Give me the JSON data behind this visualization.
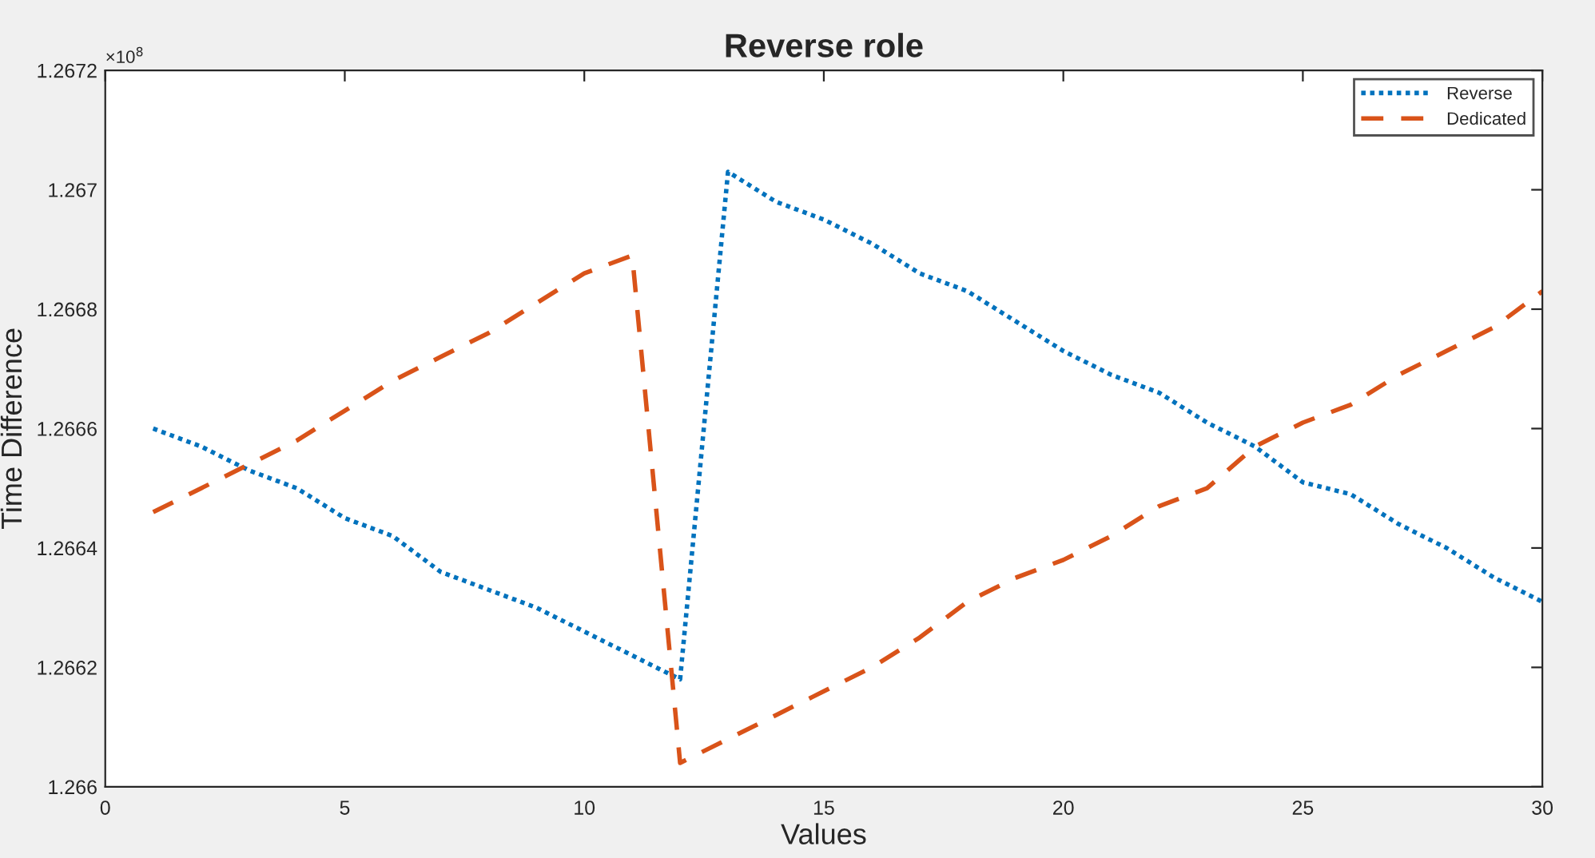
{
  "chart_data": {
    "type": "line",
    "title": "Reverse role",
    "xlabel": "Values",
    "ylabel": "Time Difference",
    "annotations": [
      "×10$^{8}$"
    ],
    "x": [
      1,
      2,
      3,
      4,
      5,
      6,
      7,
      8,
      9,
      10,
      11,
      12,
      13,
      14,
      15,
      16,
      17,
      18,
      19,
      20,
      21,
      22,
      23,
      24,
      25,
      26,
      27,
      28,
      29,
      30
    ],
    "series": [
      {
        "name": "Reverse",
        "color": "#0072bd",
        "line_style": "dotted",
        "values": [
          1.2666,
          1.26657,
          1.26653,
          1.2665,
          1.26645,
          1.26642,
          1.26636,
          1.26633,
          1.2663,
          1.26626,
          1.26622,
          1.26618,
          1.26703,
          1.26698,
          1.26695,
          1.26691,
          1.26686,
          1.26683,
          1.26678,
          1.26673,
          1.26669,
          1.26666,
          1.26661,
          1.26657,
          1.26651,
          1.26649,
          1.26644,
          1.2664,
          1.26635,
          1.26631
        ]
      },
      {
        "name": "Dedicated",
        "color": "#d95319",
        "line_style": "dashed",
        "values": [
          1.26646,
          1.2665,
          1.26654,
          1.26658,
          1.26663,
          1.26668,
          1.26672,
          1.26676,
          1.26681,
          1.26686,
          1.26689,
          1.26604,
          1.26608,
          1.26612,
          1.26616,
          1.2662,
          1.26625,
          1.26631,
          1.26635,
          1.26638,
          1.26642,
          1.26647,
          1.2665,
          1.26657,
          1.26661,
          1.26664,
          1.26669,
          1.26673,
          1.26677,
          1.26683
        ]
      }
    ],
    "xlim": [
      0,
      30
    ],
    "xticks": [
      0,
      5,
      10,
      15,
      20,
      25,
      30
    ],
    "ylim": [
      1.266,
      1.2672
    ],
    "yticks": [
      1.266,
      1.2662,
      1.2664,
      1.2666,
      1.2668,
      1.267,
      1.2672
    ],
    "grid": false,
    "legend": "top right"
  }
}
